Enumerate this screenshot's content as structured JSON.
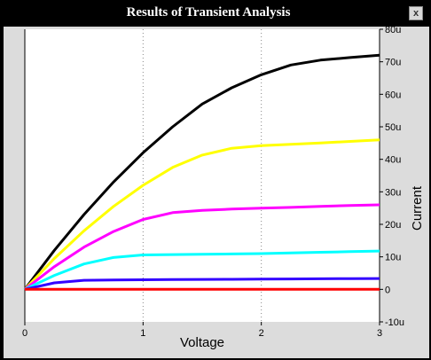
{
  "window": {
    "title": "Results of Transient Analysis",
    "close_label": "x"
  },
  "chart_data": {
    "type": "line",
    "title": "",
    "xlabel": "Voltage",
    "ylabel": "Current",
    "xlim": [
      0,
      3
    ],
    "ylim": [
      -10,
      80
    ],
    "x_ticks": [
      "0",
      "1",
      "2",
      "3"
    ],
    "y_ticks": [
      "-10u",
      "0",
      "10u",
      "20u",
      "30u",
      "40u",
      "50u",
      "60u",
      "70u",
      "80u"
    ],
    "grid": "vertical dotted at x=1,2",
    "background": "#ffffff",
    "series": [
      {
        "color": "#000000",
        "x": [
          0,
          0.25,
          0.5,
          0.75,
          1,
          1.25,
          1.5,
          1.75,
          2,
          2.25,
          2.5,
          2.75,
          3
        ],
        "y": [
          0,
          12,
          23,
          33,
          42,
          50,
          57,
          62,
          66,
          69,
          70.5,
          71.3,
          72
        ]
      },
      {
        "color": "#ffff00",
        "x": [
          0,
          0.25,
          0.5,
          0.75,
          1,
          1.25,
          1.5,
          1.75,
          2,
          2.25,
          2.5,
          2.75,
          3
        ],
        "y": [
          0,
          9.5,
          18,
          25.5,
          32,
          37.5,
          41.3,
          43.4,
          44.2,
          44.6,
          45,
          45.5,
          46
        ]
      },
      {
        "color": "#ff00ff",
        "x": [
          0,
          0.25,
          0.5,
          0.75,
          1,
          1.25,
          1.5,
          1.75,
          2,
          2.25,
          2.5,
          2.75,
          3
        ],
        "y": [
          0,
          7,
          13,
          17.8,
          21.5,
          23.6,
          24.3,
          24.7,
          25,
          25.2,
          25.5,
          25.8,
          26
        ]
      },
      {
        "color": "#00ffff",
        "x": [
          0,
          0.25,
          0.5,
          0.75,
          1,
          1.25,
          1.5,
          1.75,
          2,
          2.25,
          2.5,
          2.75,
          3
        ],
        "y": [
          0,
          4.3,
          7.8,
          9.8,
          10.6,
          10.7,
          10.8,
          10.9,
          11,
          11.2,
          11.4,
          11.6,
          11.8
        ]
      },
      {
        "color": "#3300ff",
        "x": [
          0,
          0.25,
          0.5,
          0.75,
          1,
          1.25,
          1.5,
          1.75,
          2,
          2.25,
          2.5,
          2.75,
          3
        ],
        "y": [
          0,
          2,
          2.8,
          2.9,
          2.95,
          3,
          3.05,
          3.1,
          3.15,
          3.2,
          3.25,
          3.3,
          3.35
        ]
      },
      {
        "color": "#ff0000",
        "x": [
          0,
          3
        ],
        "y": [
          0,
          0
        ]
      }
    ]
  }
}
